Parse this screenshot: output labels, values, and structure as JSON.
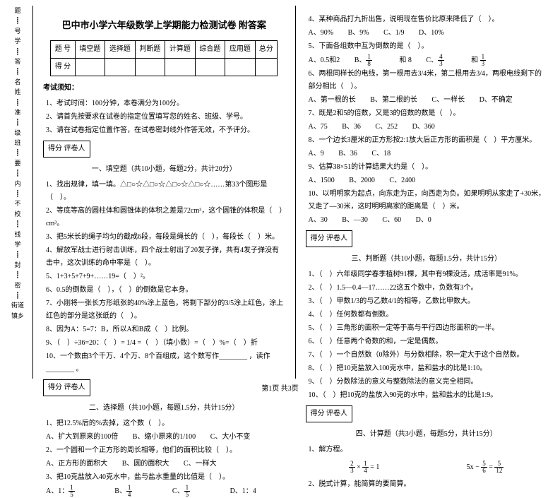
{
  "gutter_labels": [
    "题",
    "号",
    "学",
    "答",
    "名",
    "姓",
    "准",
    "班",
    "级",
    "要",
    "内",
    "不",
    "校",
    "线",
    "学",
    "封",
    "密",
    "街道",
    "镇乡"
  ],
  "title": "巴中市小学六年级数学上学期能力检测试卷 附答案",
  "score_table": {
    "headers": [
      "题 号",
      "填空题",
      "选择题",
      "判断题",
      "计算题",
      "综合题",
      "应用题",
      "总分"
    ],
    "row_label": "得 分"
  },
  "exam_notice_title": "考试须知：",
  "notices": [
    "1、考试时间：100分钟，本卷满分为100分。",
    "2、请首先按要求在试卷的指定位置填写您的姓名、班级、学号。",
    "3、请在试卷指定位置作答，在试卷密封线外作答无效，不予评分。"
  ],
  "scorebox": "得分 评卷人",
  "sec1_title": "一、填空题（共10小题，每题2分，共计20分）",
  "sec1": [
    "1、找出规律，填一填。△□○☆△□○☆△□○☆△□○☆……第33个图形是（　）。",
    "2、等底等高的圆柱体和圆锥体的体积之差是72cm³，这个圆锥的体积是（　）cm³。",
    "3、把5米长的绳子均匀的截成6段，每段是绳长的（　），每段长（　）米。",
    "4、解放军战士进行射击训练，四个战士射出了20发子弹，共有4发子弹没有击中，这次训练的命中率是（　）。",
    "5、1+3+5+7+9+……19=（　）²。",
    "6、0.5的倒数是（　），（　）的倒数是它本身。",
    "7、小刚将一张长方形纸张的40%涂上蓝色，将剩下部分的3/5涂上红色，涂上红色的部分是这张纸的（　）。",
    "8、因为A：5=7：B，所以A和B成（　）比例。",
    "9、（　）÷36=20：（　）= 1/4 =（　）（填小数）=（　）%=（　）折",
    "10、一个数由3个千万、4个万、8个百组成，这个数写作________ ，读作________ 。"
  ],
  "sec2_title": "二、选择题（共10小题，每题1.5分，共计15分）",
  "sec2": [
    {
      "q": "1、把12.5%后的%去掉，这个数（　）。",
      "opts": [
        "A、扩大到原来的100倍",
        "B、缩小原来的1/100",
        "C、大小不变"
      ]
    },
    {
      "q": "2、一个圆和一个正方形的周长相等，他们的面积比较（　）。",
      "opts": [
        "A、正方形的面积大",
        "B、圆的面积大",
        "C、一样大"
      ]
    },
    {
      "q": "3、把10克盐放入40克水中，盐与盐水重量的比值是（　）。",
      "opts": [
        "A、1：5",
        "B、1/4",
        "C、1/5",
        "D、1：4"
      ]
    }
  ],
  "sec2r": [
    {
      "q": "4、某种商品打九折出售，说明现在售价比原来降低了（　）。",
      "opts": [
        "A、90%",
        "B、9%",
        "C、1/9",
        "D、10%"
      ]
    },
    {
      "q": "5、下面各组数中互为倒数的是（　）。",
      "opts": [
        "A、0.5和2",
        "B、1/8 和 8",
        "C、4/3 和 1/3"
      ]
    },
    {
      "q": "6、两根同样长的电线，第一根用去3/4米，第二根用去3/4，两根电线剩下的部分相比（　）。",
      "opts": [
        "A、第一根的长",
        "B、第二根的长",
        "C、一样长",
        "D、不确定"
      ]
    },
    {
      "q": "7、既是2和5的倍数，又是3的倍数的数是（　）。",
      "opts": [
        "A、75",
        "B、36",
        "C、252",
        "D、360"
      ]
    },
    {
      "q": "8、一个边长3厘米的正方形按2:1放大后正方形的面积是（　）平方厘米。",
      "opts": [
        "A、9",
        "B、36",
        "C、18"
      ]
    },
    {
      "q": "9、估算38×51的计算结果大约是（　）。",
      "opts": [
        "A、1500",
        "B、2000",
        "C、2400"
      ]
    },
    {
      "q": "10、以明明家为起点，向东走为正，向西走为负。如果明明从家走了+30米，又走了—30米，这时明明离家的距离是（　）米。",
      "opts": [
        "A、30",
        "B、—30",
        "C、60",
        "D、0"
      ]
    }
  ],
  "sec3_title": "三、判断题（共10小题，每题1.5分，共计15分）",
  "sec3": [
    "1、（　）六年级同学春季植树91棵，其中有9棵没活，成活率是91%。",
    "2、（　）1.5—0.4—17……22这五个数中，负数有3个。",
    "3、（　）甲数1/3的与乙数4/1的相等，乙数比甲数大。",
    "4、（　）任何数都有倒数。",
    "5、（　）三角形的面积一定等于高与平行四边形面积的一半。",
    "6、（　）任意两个奇数的和，一定是偶数。",
    "7、（　）一个自然数（0除外）与分数相除，积一定大于这个自然数。",
    "8、（　）把10克盐放入100克水中，盐和盐水的比是1:10。",
    "9、（　）分数除法的意义与整数除法的意义完全相同。",
    "10、（　）把10克的盐放入90克的水中，盐和盐水的比是1:9。"
  ],
  "sec4_title": "四、计算题（共3小题，每题5分，共计15分）",
  "calc_title": "1、解方程。",
  "calc1": "2/3 × 1/4 = 1",
  "calc2": "5x - 5/6 = 5/12",
  "calc_bottom": "2、脱式计算，能简算的要简算。",
  "footer": "第1页 共3页"
}
